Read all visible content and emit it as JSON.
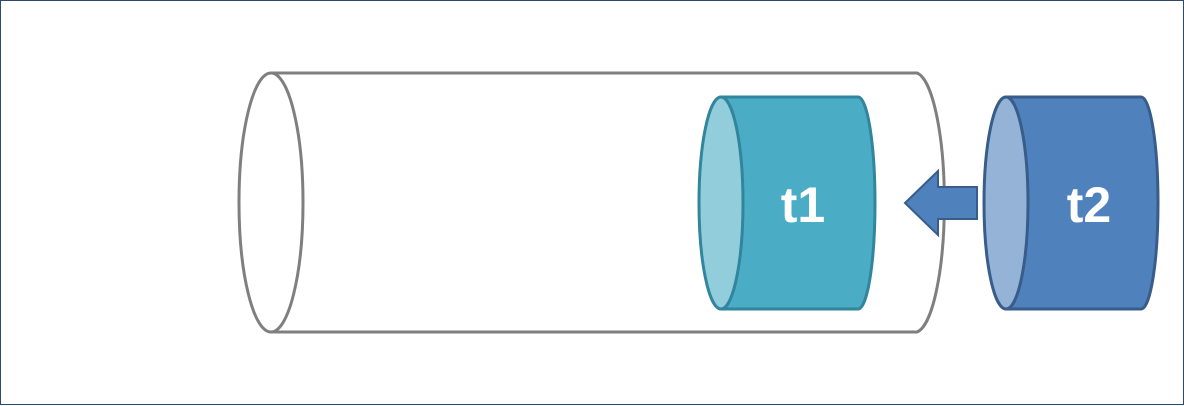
{
  "diagram": {
    "tube": {
      "stroke": "#7f7f7f",
      "fill": "#ffffff"
    },
    "cylinder_t1": {
      "label": "t1",
      "body_color": "#4bacc6",
      "face_color": "#92cddc",
      "stroke": "#31859c"
    },
    "cylinder_t2": {
      "label": "t2",
      "body_color": "#4f81bd",
      "face_color": "#95b3d7",
      "stroke": "#385d8a"
    },
    "arrow": {
      "direction": "left",
      "color": "#4f81bd",
      "stroke": "#385d8a"
    }
  }
}
